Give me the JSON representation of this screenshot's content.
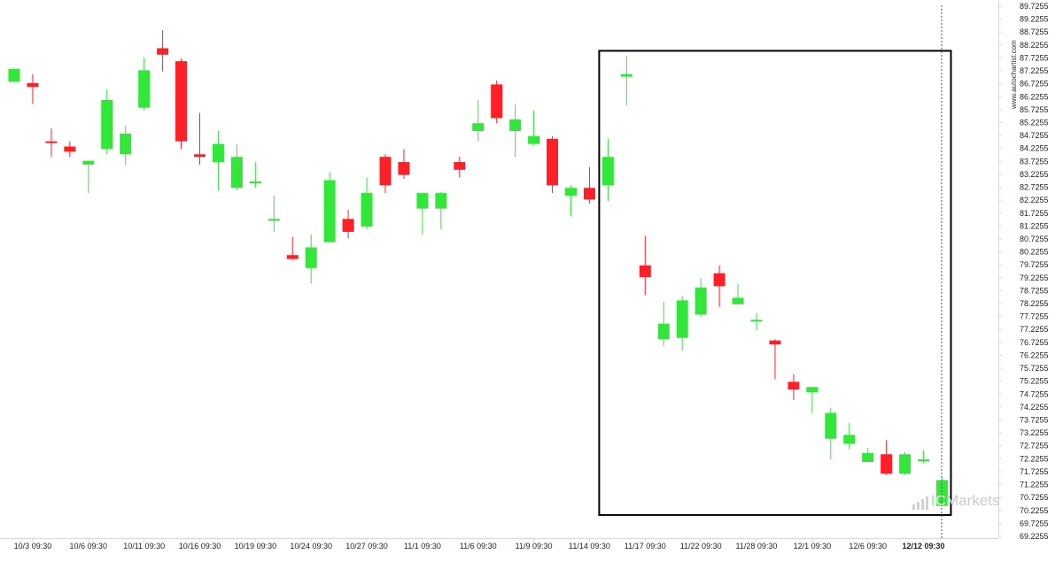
{
  "chart_data": {
    "type": "candlestick",
    "watermark": "www.autochartist.com",
    "brand": "ICMarkets",
    "colors": {
      "up": "#33e63a",
      "down": "#ff1f26",
      "axis": "#d6d9de",
      "highlight": "#000000",
      "text": "#222222"
    },
    "y_axis": {
      "position": "right",
      "min": 69.2255,
      "max": 89.7255,
      "tick_labels": [
        "89.7255",
        "89.2255",
        "88.7255",
        "88.2255",
        "87.7255",
        "87.2255",
        "86.7255",
        "86.2255",
        "85.7255",
        "85.2255",
        "84.7255",
        "84.2255",
        "83.7255",
        "83.2255",
        "82.7255",
        "82.2255",
        "81.7255",
        "81.2255",
        "80.7255",
        "80.2255",
        "79.7255",
        "79.2255",
        "78.7255",
        "78.2255",
        "77.7255",
        "77.2255",
        "76.7255",
        "76.2255",
        "75.7255",
        "75.2255",
        "74.7255",
        "74.2255",
        "73.7255",
        "73.2255",
        "72.7255",
        "72.2255",
        "71.7255",
        "71.2255",
        "70.7255",
        "70.2255",
        "69.7255",
        "69.2255"
      ]
    },
    "x_axis": {
      "tick_labels": [
        {
          "label": "10/3 09:30",
          "index": 1
        },
        {
          "label": "10/6 09:30",
          "index": 4
        },
        {
          "label": "10/11 09:30",
          "index": 7
        },
        {
          "label": "10/16 09:30",
          "index": 10
        },
        {
          "label": "10/19 09:30",
          "index": 13
        },
        {
          "label": "10/24 09:30",
          "index": 16
        },
        {
          "label": "10/27 09:30",
          "index": 19
        },
        {
          "label": "11/1 09:30",
          "index": 22
        },
        {
          "label": "11/6 09:30",
          "index": 25
        },
        {
          "label": "11/9 09:30",
          "index": 28
        },
        {
          "label": "11/14 09:30",
          "index": 31
        },
        {
          "label": "11/17 09:30",
          "index": 34
        },
        {
          "label": "11/22 09:30",
          "index": 37
        },
        {
          "label": "11/28 09:30",
          "index": 40
        },
        {
          "label": "12/1 09:30",
          "index": 43
        },
        {
          "label": "12/6 09:30",
          "index": 46
        },
        {
          "label": "12/12 09:30",
          "index": 49,
          "bold": true
        }
      ]
    },
    "highlight_box": {
      "from_index": 32,
      "to_index": 50,
      "top": 88.0,
      "bottom": 70.05
    },
    "current_line_index": 50,
    "candles": [
      {
        "o": 86.8,
        "h": 87.3,
        "l": 86.8,
        "c": 87.3
      },
      {
        "o": 86.75,
        "h": 87.1,
        "l": 85.95,
        "c": 86.6
      },
      {
        "o": 84.5,
        "h": 85.0,
        "l": 83.9,
        "c": 84.45
      },
      {
        "o": 84.3,
        "h": 84.5,
        "l": 83.9,
        "c": 84.1
      },
      {
        "o": 83.6,
        "h": 83.75,
        "l": 82.5,
        "c": 83.75
      },
      {
        "o": 84.2,
        "h": 86.5,
        "l": 84.0,
        "c": 86.1
      },
      {
        "o": 84.0,
        "h": 85.1,
        "l": 83.6,
        "c": 84.8
      },
      {
        "o": 85.8,
        "h": 87.75,
        "l": 85.7,
        "c": 87.25
      },
      {
        "o": 88.1,
        "h": 88.8,
        "l": 87.2,
        "c": 87.85
      },
      {
        "o": 87.6,
        "h": 87.7,
        "l": 84.2,
        "c": 84.5
      },
      {
        "o": 84.0,
        "h": 85.6,
        "l": 83.6,
        "c": 83.9
      },
      {
        "o": 83.7,
        "h": 84.9,
        "l": 82.6,
        "c": 84.4
      },
      {
        "o": 82.7,
        "h": 84.4,
        "l": 82.6,
        "c": 83.9
      },
      {
        "o": 82.95,
        "h": 83.7,
        "l": 82.7,
        "c": 82.95
      },
      {
        "o": 81.5,
        "h": 82.4,
        "l": 81.0,
        "c": 81.5
      },
      {
        "o": 80.1,
        "h": 80.8,
        "l": 79.9,
        "c": 79.95
      },
      {
        "o": 79.6,
        "h": 80.9,
        "l": 79.0,
        "c": 80.4
      },
      {
        "o": 80.6,
        "h": 83.3,
        "l": 80.6,
        "c": 83.0
      },
      {
        "o": 81.5,
        "h": 81.85,
        "l": 80.75,
        "c": 81.0
      },
      {
        "o": 81.2,
        "h": 83.1,
        "l": 81.1,
        "c": 82.5
      },
      {
        "o": 83.9,
        "h": 84.0,
        "l": 82.5,
        "c": 82.8
      },
      {
        "o": 83.7,
        "h": 84.2,
        "l": 83.05,
        "c": 83.2
      },
      {
        "o": 81.9,
        "h": 82.5,
        "l": 80.9,
        "c": 82.5
      },
      {
        "o": 81.9,
        "h": 82.55,
        "l": 81.1,
        "c": 82.5
      },
      {
        "o": 83.7,
        "h": 83.9,
        "l": 83.1,
        "c": 83.4
      },
      {
        "o": 84.9,
        "h": 86.1,
        "l": 84.5,
        "c": 85.2
      },
      {
        "o": 86.7,
        "h": 86.85,
        "l": 85.2,
        "c": 85.4
      },
      {
        "o": 84.9,
        "h": 85.95,
        "l": 83.9,
        "c": 85.35
      },
      {
        "o": 84.4,
        "h": 85.7,
        "l": 84.35,
        "c": 84.7
      },
      {
        "o": 84.6,
        "h": 84.7,
        "l": 82.5,
        "c": 82.8
      },
      {
        "o": 82.4,
        "h": 82.8,
        "l": 81.6,
        "c": 82.7
      },
      {
        "o": 82.7,
        "h": 83.5,
        "l": 82.1,
        "c": 82.25
      },
      {
        "o": 82.8,
        "h": 84.6,
        "l": 82.2,
        "c": 83.9
      },
      {
        "o": 87.0,
        "h": 87.8,
        "l": 85.9,
        "c": 87.1
      },
      {
        "o": 79.7,
        "h": 80.85,
        "l": 78.55,
        "c": 79.25
      },
      {
        "o": 76.85,
        "h": 78.3,
        "l": 76.6,
        "c": 77.45
      },
      {
        "o": 76.9,
        "h": 78.5,
        "l": 76.4,
        "c": 78.35
      },
      {
        "o": 77.8,
        "h": 79.2,
        "l": 77.7,
        "c": 78.85
      },
      {
        "o": 79.4,
        "h": 79.7,
        "l": 78.1,
        "c": 78.9
      },
      {
        "o": 78.2,
        "h": 79.0,
        "l": 78.2,
        "c": 78.45
      },
      {
        "o": 77.6,
        "h": 77.85,
        "l": 77.2,
        "c": 77.6
      },
      {
        "o": 76.8,
        "h": 76.85,
        "l": 75.3,
        "c": 76.65
      },
      {
        "o": 75.2,
        "h": 75.5,
        "l": 74.5,
        "c": 74.9
      },
      {
        "o": 74.8,
        "h": 74.95,
        "l": 74.0,
        "c": 75.0
      },
      {
        "o": 73.0,
        "h": 74.2,
        "l": 72.2,
        "c": 74.0
      },
      {
        "o": 72.8,
        "h": 73.6,
        "l": 72.6,
        "c": 73.15
      },
      {
        "o": 72.1,
        "h": 72.65,
        "l": 72.1,
        "c": 72.45
      },
      {
        "o": 72.4,
        "h": 72.95,
        "l": 71.6,
        "c": 71.65
      },
      {
        "o": 71.65,
        "h": 72.5,
        "l": 71.6,
        "c": 72.4
      },
      {
        "o": 72.2,
        "h": 72.55,
        "l": 72.05,
        "c": 72.2
      },
      {
        "o": 70.4,
        "h": 71.5,
        "l": 70.4,
        "c": 71.4
      }
    ]
  }
}
